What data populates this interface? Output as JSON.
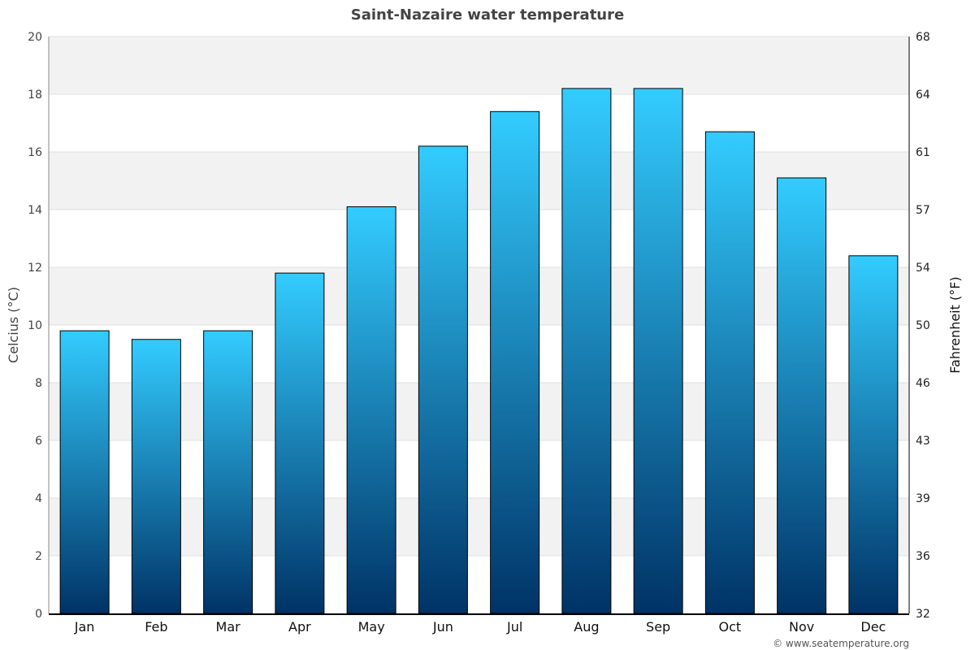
{
  "chart_data": {
    "type": "bar",
    "title": "Saint-Nazaire water temperature",
    "categories": [
      "Jan",
      "Feb",
      "Mar",
      "Apr",
      "May",
      "Jun",
      "Jul",
      "Aug",
      "Sep",
      "Oct",
      "Nov",
      "Dec"
    ],
    "values": [
      9.8,
      9.5,
      9.8,
      11.8,
      14.1,
      16.2,
      17.4,
      18.2,
      18.2,
      16.7,
      15.1,
      12.4
    ],
    "ylabel": "Celcius (°C)",
    "ylabel_right": "Fahrenheit (°F)",
    "ylim": [
      0,
      20
    ],
    "yticks": [
      0,
      2,
      4,
      6,
      8,
      10,
      12,
      14,
      16,
      18,
      20
    ],
    "yticks_right": [
      32,
      36,
      39,
      43,
      46,
      50,
      54,
      57,
      61,
      64,
      68
    ],
    "grid": true,
    "legend": "none",
    "colors": {
      "bar_top": "#33ccff",
      "bar_bottom": "#003366",
      "band": "#f2f2f2"
    }
  },
  "credit": "© www.seatemperature.org"
}
